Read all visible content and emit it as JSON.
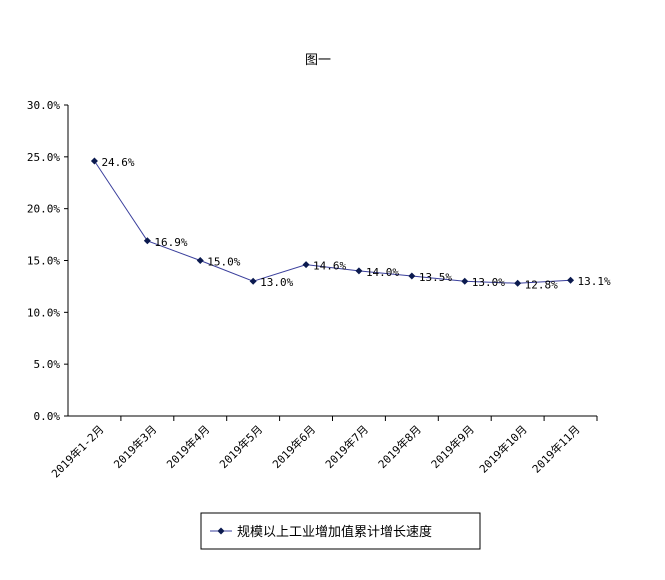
{
  "chart_data": {
    "type": "line",
    "title": "图一",
    "categories": [
      "2019年1-2月",
      "2019年3月",
      "2019年4月",
      "2019年5月",
      "2019年6月",
      "2019年7月",
      "2019年8月",
      "2019年9月",
      "2019年10月",
      "2019年11月"
    ],
    "series": [
      {
        "name": "规模以上工业增加值累计增长速度",
        "values": [
          24.6,
          16.9,
          15.0,
          13.0,
          14.6,
          14.0,
          13.5,
          13.0,
          12.8,
          13.1
        ],
        "labels": [
          "24.6%",
          "16.9%",
          "15.0%",
          "13.0%",
          "14.6%",
          "14.0%",
          "13.5%",
          "13.0%",
          "12.8%",
          "13.1%"
        ],
        "color": "#3a3f9c",
        "marker_color": "#0b1a4f"
      }
    ],
    "yticks": [
      "0.0%",
      "5.0%",
      "10.0%",
      "15.0%",
      "20.0%",
      "25.0%",
      "30.0%"
    ],
    "ylim": [
      0,
      30
    ],
    "xlabel": "",
    "ylabel": "",
    "grid": false,
    "legend_position": "bottom"
  }
}
